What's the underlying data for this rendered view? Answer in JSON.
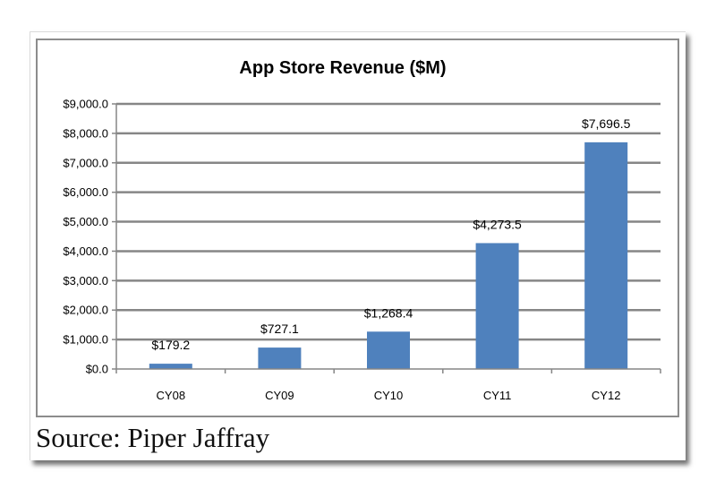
{
  "chart_data": {
    "type": "bar",
    "title": "App Store Revenue ($M)",
    "categories": [
      "CY08",
      "CY09",
      "CY10",
      "CY11",
      "CY12"
    ],
    "values": [
      179.2,
      727.1,
      1268.4,
      4273.5,
      7696.5
    ],
    "data_labels": [
      "$179.2",
      "$727.1",
      "$1,268.4",
      "$4,273.5",
      "$7,696.5"
    ],
    "y_tick_values": [
      0,
      1000,
      2000,
      3000,
      4000,
      5000,
      6000,
      7000,
      8000,
      9000
    ],
    "y_tick_labels": [
      "$0.0",
      "$1,000.0",
      "$2,000.0",
      "$3,000.0",
      "$4,000.0",
      "$5,000.0",
      "$6,000.0",
      "$7,000.0",
      "$8,000.0",
      "$9,000.0"
    ],
    "ylim": [
      0,
      9000
    ],
    "xlabel": "",
    "ylabel": "",
    "grid": true,
    "legend": "none",
    "bar_color": "#4f81bd",
    "gridline_color": "#868686"
  },
  "source": "Source: Piper Jaffray"
}
